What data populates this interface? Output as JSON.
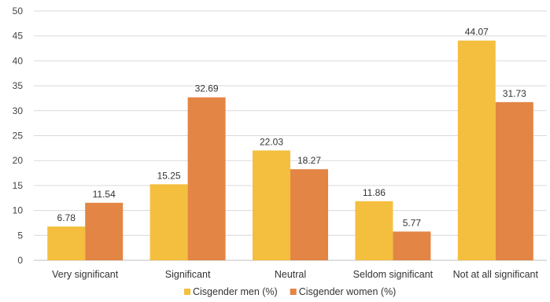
{
  "chart_data": {
    "type": "bar",
    "title": "",
    "xlabel": "",
    "ylabel": "",
    "ylim": [
      0,
      50
    ],
    "yticks": [
      0,
      5,
      10,
      15,
      20,
      25,
      30,
      35,
      40,
      45,
      50
    ],
    "grid": true,
    "legend_position": "bottom",
    "categories": [
      "Very significant",
      "Significant",
      "Neutral",
      "Seldom significant",
      "Not at all significant"
    ],
    "series": [
      {
        "name": "Cisgender men (%)",
        "color": "#F4BF3F",
        "values": [
          6.78,
          15.25,
          22.03,
          11.86,
          44.07
        ]
      },
      {
        "name": "Cisgender women (%)",
        "color": "#E38545",
        "values": [
          11.54,
          32.69,
          18.27,
          5.77,
          31.73
        ]
      }
    ]
  }
}
